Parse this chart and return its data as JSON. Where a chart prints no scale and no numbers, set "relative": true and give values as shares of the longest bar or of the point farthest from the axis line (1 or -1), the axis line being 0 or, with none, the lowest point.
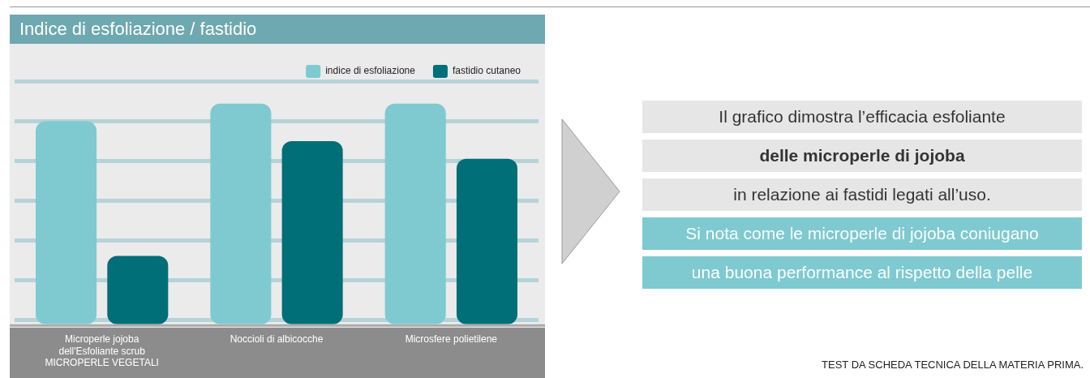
{
  "chart_data": {
    "type": "bar",
    "title": "Indice di esfoliazione / fastidio",
    "categories": [
      "Microperle jojoba dell'Esfoliante scrub MICROPERLE VEGETALI",
      "Noccioli di albicocche",
      "Microsfere polietilene"
    ],
    "series": [
      {
        "name": "indice di esfoliazione",
        "color": "#7ecad0",
        "values": [
          0.92,
          1,
          1
        ]
      },
      {
        "name": "fastidio cutaneo",
        "color": "#006f78",
        "values": [
          0.31,
          0.83,
          0.75
        ]
      }
    ],
    "relative": true,
    "grid": "y",
    "legend": "top right",
    "annotations": [
      "Il grafico dimostra l’efficacia esfoliante",
      "delle microperle di jojoba",
      "in relazione ai fastidi legati all’uso.",
      "Si nota come le microperle di jojoba coniugano",
      "una buona performance al rispetto della pelle",
      "TEST DA SCHEDA TECNICA DELLA MATERIA PRIMA."
    ]
  }
}
